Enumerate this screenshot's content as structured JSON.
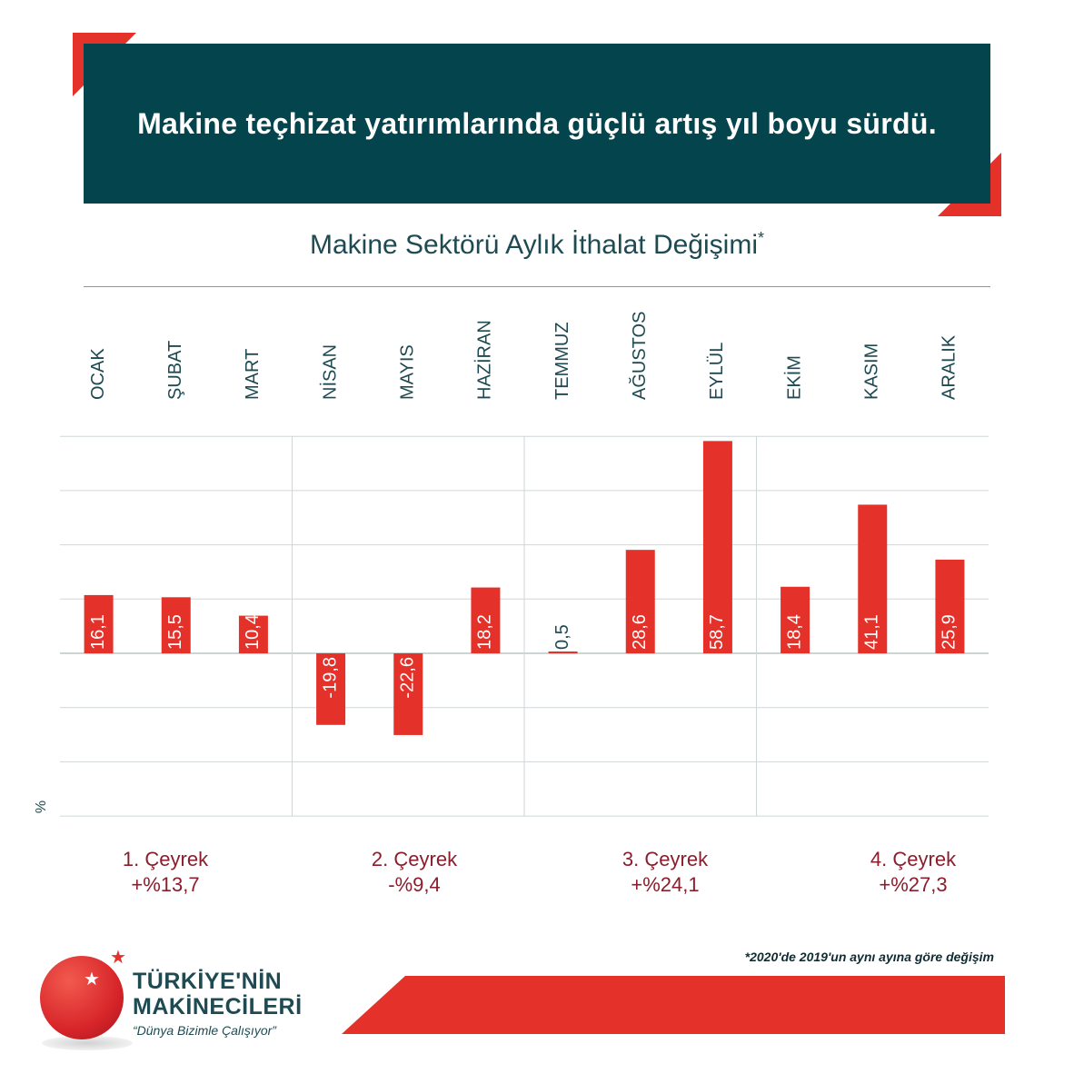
{
  "header": {
    "title": "Makine teçhizat yatırımlarında güçlü artış yıl boyu sürdü."
  },
  "chart_title": {
    "text": "Makine Sektörü Aylık İthalat Değişimi",
    "mark": "*"
  },
  "chart_data": {
    "type": "bar",
    "title": "Makine Sektörü Aylık İthalat Değişimi*",
    "categories": [
      "OCAK",
      "ŞUBAT",
      "MART",
      "NİSAN",
      "MAYIS",
      "HAZİRAN",
      "TEMMUZ",
      "AĞUSTOS",
      "EYLÜL",
      "EKİM",
      "KASIM",
      "ARALIK"
    ],
    "values": [
      16.1,
      15.5,
      10.4,
      -19.8,
      -22.6,
      18.2,
      0.5,
      28.6,
      58.7,
      18.4,
      41.1,
      25.9
    ],
    "value_labels": [
      "16,1",
      "15,5",
      "10,4",
      "-19,8",
      "-22,6",
      "18,2",
      "0,5",
      "28,6",
      "58,7",
      "18,4",
      "41,1",
      "25,9"
    ],
    "ylabel": "%",
    "ylim": [
      -45,
      60
    ],
    "grid": true,
    "bar_color": "#e4322b",
    "quarters": [
      {
        "label": "1. Çeyrek",
        "value": "+%13,7"
      },
      {
        "label": "2. Çeyrek",
        "value": "-%9,4"
      },
      {
        "label": "3. Çeyrek",
        "value": "+%24,1"
      },
      {
        "label": "4. Çeyrek",
        "value": "+%27,3"
      }
    ]
  },
  "footnote": "*2020'de 2019'un aynı ayına göre değişim",
  "brand": {
    "line1": "TÜRKİYE'NİN",
    "line2": "MAKİNECİLERİ",
    "slogan": "“Dünya Bizimle Çalışıyor”"
  },
  "colors": {
    "accent": "#e4322b",
    "header_bg": "#04444d",
    "text_dark": "#1e4a52",
    "quarter_text": "#8b1d2c"
  },
  "icons": {
    "logo_star": "star-icon"
  }
}
